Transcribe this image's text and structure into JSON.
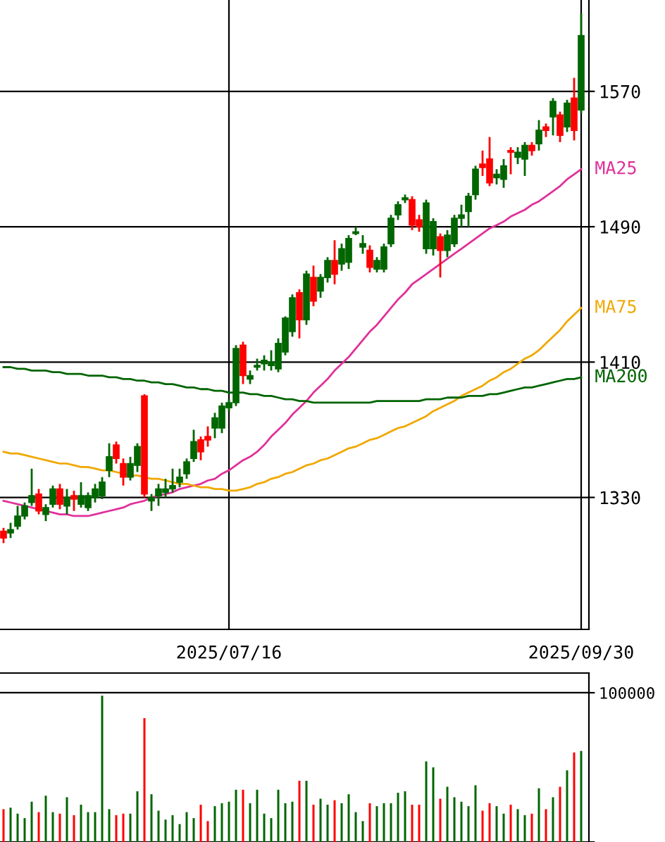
{
  "chart_data": [
    {
      "type": "candlestick",
      "categories": [
        null,
        null,
        null,
        null,
        null,
        null,
        null,
        null,
        null,
        null,
        null,
        null,
        null,
        null,
        null,
        null,
        null,
        null,
        null,
        null,
        null,
        null,
        null,
        null,
        null,
        null,
        null,
        null,
        null,
        null,
        null,
        null,
        "2025/07/16",
        null,
        null,
        null,
        null,
        null,
        null,
        null,
        null,
        null,
        null,
        null,
        null,
        null,
        null,
        null,
        null,
        null,
        null,
        null,
        null,
        null,
        null,
        null,
        null,
        null,
        null,
        null,
        null,
        null,
        null,
        null,
        null,
        null,
        null,
        null,
        null,
        null,
        null,
        null,
        null,
        null,
        null,
        null,
        null,
        null,
        null,
        null,
        null,
        null,
        "2025/09/30"
      ],
      "ohlc": [
        [
          1310,
          1312,
          1303,
          1306
        ],
        [
          1309,
          1315,
          1306,
          1311
        ],
        [
          1313,
          1325,
          1311,
          1319
        ],
        [
          1319,
          1327,
          1317,
          1325
        ],
        [
          1327,
          1347,
          1325,
          1331
        ],
        [
          1332,
          1335,
          1320,
          1322
        ],
        [
          1320,
          1326,
          1316,
          1324
        ],
        [
          1326,
          1337,
          1324,
          1335
        ],
        [
          1335,
          1338,
          1323,
          1326
        ],
        [
          1325,
          1335,
          1320,
          1330
        ],
        [
          1331,
          1334,
          1322,
          1329
        ],
        [
          1326,
          1339,
          1324,
          1331
        ],
        [
          1324,
          1333,
          1322,
          1331
        ],
        [
          1330,
          1338,
          1327,
          1335
        ],
        [
          1331,
          1342,
          1329,
          1339
        ],
        [
          1346,
          1362,
          1342,
          1354
        ],
        [
          1361,
          1363,
          1350,
          1353
        ],
        [
          1350,
          1353,
          1337,
          1342
        ],
        [
          1342,
          1354,
          1340,
          1350
        ],
        [
          1349,
          1362,
          1345,
          1360
        ],
        [
          1390,
          1391,
          1330,
          1332
        ],
        [
          1328,
          1332,
          1322,
          1330
        ],
        [
          1331,
          1338,
          1325,
          1335
        ],
        [
          1333,
          1341,
          1330,
          1335
        ],
        [
          1335,
          1347,
          1333,
          1337
        ],
        [
          1339,
          1347,
          1336,
          1342
        ],
        [
          1344,
          1353,
          1341,
          1351
        ],
        [
          1353,
          1370,
          1351,
          1363
        ],
        [
          1364,
          1366,
          1352,
          1357
        ],
        [
          1366,
          1372,
          1360,
          1364
        ],
        [
          1371,
          1380,
          1365,
          1377
        ],
        [
          1371,
          1386,
          1368,
          1384
        ],
        [
          1383,
          1388,
          1381,
          1386
        ],
        [
          1386,
          1420,
          1384,
          1418
        ],
        [
          1420,
          1422,
          1397,
          1402
        ],
        [
          1400,
          1405,
          1397,
          1402
        ],
        [
          1407,
          1412,
          1405,
          1408
        ],
        [
          1409,
          1414,
          1405,
          1411
        ],
        [
          1408,
          1417,
          1405,
          1410
        ],
        [
          1406,
          1424,
          1404,
          1421
        ],
        [
          1416,
          1437,
          1414,
          1436
        ],
        [
          1428,
          1450,
          1425,
          1448
        ],
        [
          1451,
          1453,
          1424,
          1435
        ],
        [
          1435,
          1464,
          1432,
          1462
        ],
        [
          1460,
          1467,
          1443,
          1446
        ],
        [
          1452,
          1462,
          1448,
          1460
        ],
        [
          1460,
          1472,
          1457,
          1470
        ],
        [
          1470,
          1482,
          1456,
          1462
        ],
        [
          1468,
          1480,
          1464,
          1477
        ],
        [
          1469,
          1485,
          1465,
          1483
        ],
        [
          1486,
          1490,
          1485,
          1487
        ],
        [
          1478,
          1485,
          1474,
          1480
        ],
        [
          1476,
          1479,
          1463,
          1466
        ],
        [
          1465,
          1472,
          1463,
          1470
        ],
        [
          1465,
          1480,
          1463,
          1478
        ],
        [
          1480,
          1497,
          1478,
          1495
        ],
        [
          1497,
          1505,
          1494,
          1503
        ],
        [
          1506,
          1509,
          1504,
          1507
        ],
        [
          1506,
          1508,
          1488,
          1491
        ],
        [
          1494,
          1497,
          1487,
          1490
        ],
        [
          1477,
          1506,
          1474,
          1504
        ],
        [
          1477,
          1495,
          1473,
          1493
        ],
        [
          1484,
          1486,
          1460,
          1476
        ],
        [
          1476,
          1488,
          1472,
          1485
        ],
        [
          1480,
          1497,
          1478,
          1495
        ],
        [
          1495,
          1503,
          1490,
          1497
        ],
        [
          1499,
          1510,
          1490,
          1508
        ],
        [
          1509,
          1526,
          1506,
          1524
        ],
        [
          1527,
          1535,
          1520,
          1525
        ],
        [
          1530,
          1543,
          1514,
          1516
        ],
        [
          1519,
          1524,
          1515,
          1521
        ],
        [
          1518,
          1530,
          1513,
          1526
        ],
        [
          1535,
          1537,
          1521,
          1534
        ],
        [
          1531,
          1537,
          1527,
          1534
        ],
        [
          1530,
          1540,
          1520,
          1538
        ],
        [
          1538,
          1540,
          1532,
          1535
        ],
        [
          1539,
          1553,
          1535,
          1547
        ],
        [
          1549,
          1551,
          1543,
          1547
        ],
        [
          1555,
          1566,
          1544,
          1564
        ],
        [
          1556,
          1558,
          1540,
          1544
        ],
        [
          1549,
          1565,
          1546,
          1563
        ],
        [
          1566,
          1578,
          1541,
          1547
        ],
        [
          1559,
          1616,
          1557,
          1603
        ]
      ],
      "colors": [
        "#ff0000",
        "#006600",
        "#006600",
        "#006600",
        "#006600",
        "#ff0000",
        "#006600",
        "#006600",
        "#ff0000",
        "#006600",
        "#ff0000",
        "#006600",
        "#006600",
        "#006600",
        "#006600",
        "#006600",
        "#ff0000",
        "#ff0000",
        "#006600",
        "#006600",
        "#ff0000",
        "#006600",
        "#006600",
        "#006600",
        "#006600",
        "#006600",
        "#006600",
        "#006600",
        "#ff0000",
        "#ff0000",
        "#006600",
        "#006600",
        "#006600",
        "#006600",
        "#ff0000",
        "#006600",
        "#006600",
        "#006600",
        "#006600",
        "#006600",
        "#006600",
        "#006600",
        "#ff0000",
        "#006600",
        "#ff0000",
        "#006600",
        "#006600",
        "#ff0000",
        "#006600",
        "#006600",
        "#006600",
        "#006600",
        "#ff0000",
        "#006600",
        "#006600",
        "#006600",
        "#006600",
        "#006600",
        "#ff0000",
        "#ff0000",
        "#006600",
        "#006600",
        "#ff0000",
        "#006600",
        "#006600",
        "#006600",
        "#006600",
        "#006600",
        "#ff0000",
        "#ff0000",
        "#006600",
        "#006600",
        "#ff0000",
        "#006600",
        "#006600",
        "#ff0000",
        "#006600",
        "#ff0000",
        "#006600",
        "#ff0000",
        "#006600",
        "#ff0000",
        "#006600"
      ],
      "series": [
        {
          "name": "MA25",
          "type": "line",
          "color": "#e0309a",
          "values": [
            1328,
            1327,
            1326,
            1325,
            1324,
            1323,
            1322,
            1321,
            1320,
            1320,
            1319,
            1319,
            1319,
            1320,
            1321,
            1322,
            1323,
            1324,
            1326,
            1327,
            1328,
            1330,
            1331,
            1332,
            1333,
            1335,
            1336,
            1337,
            1338,
            1340,
            1341,
            1344,
            1346,
            1349,
            1352,
            1354,
            1357,
            1361,
            1366,
            1370,
            1374,
            1379,
            1383,
            1387,
            1392,
            1396,
            1400,
            1405,
            1409,
            1413,
            1418,
            1423,
            1428,
            1432,
            1437,
            1442,
            1447,
            1451,
            1456,
            1459,
            1462,
            1465,
            1468,
            1471,
            1474,
            1477,
            1480,
            1483,
            1486,
            1489,
            1491,
            1493,
            1496,
            1498,
            1500,
            1503,
            1505,
            1508,
            1511,
            1514,
            1518,
            1521,
            1524
          ]
        },
        {
          "name": "MA75",
          "type": "line",
          "color": "#f0a800",
          "values": [
            1357,
            1356,
            1356,
            1355,
            1354,
            1353,
            1352,
            1351,
            1350,
            1350,
            1349,
            1348,
            1348,
            1347,
            1346,
            1346,
            1345,
            1344,
            1343,
            1343,
            1342,
            1341,
            1341,
            1340,
            1339,
            1338,
            1338,
            1337,
            1336,
            1336,
            1335,
            1335,
            1334,
            1334,
            1335,
            1336,
            1338,
            1339,
            1341,
            1342,
            1344,
            1345,
            1347,
            1349,
            1350,
            1352,
            1353,
            1355,
            1357,
            1359,
            1360,
            1362,
            1364,
            1365,
            1367,
            1369,
            1371,
            1372,
            1374,
            1376,
            1378,
            1381,
            1383,
            1385,
            1387,
            1390,
            1392,
            1394,
            1396,
            1399,
            1401,
            1404,
            1406,
            1409,
            1412,
            1414,
            1417,
            1421,
            1425,
            1429,
            1434,
            1438,
            1442
          ]
        },
        {
          "name": "MA200",
          "type": "line",
          "color": "#006400",
          "values": [
            1407,
            1407,
            1406,
            1406,
            1405,
            1405,
            1405,
            1404,
            1404,
            1403,
            1403,
            1403,
            1402,
            1402,
            1402,
            1401,
            1401,
            1400,
            1400,
            1399,
            1399,
            1398,
            1398,
            1397,
            1397,
            1396,
            1395,
            1395,
            1394,
            1394,
            1393,
            1393,
            1392,
            1392,
            1392,
            1391,
            1391,
            1390,
            1390,
            1389,
            1388,
            1388,
            1387,
            1387,
            1386,
            1386,
            1386,
            1386,
            1386,
            1386,
            1386,
            1386,
            1386,
            1387,
            1387,
            1387,
            1387,
            1387,
            1387,
            1387,
            1388,
            1388,
            1388,
            1389,
            1389,
            1389,
            1390,
            1390,
            1390,
            1391,
            1391,
            1392,
            1393,
            1394,
            1395,
            1395,
            1396,
            1397,
            1398,
            1399,
            1400,
            1400,
            1401
          ]
        }
      ],
      "ylim": [
        1252,
        1624
      ],
      "yticks": [
        1330,
        1410,
        1490,
        1570
      ],
      "grid": true
    },
    {
      "type": "bar",
      "categories": [
        null,
        null,
        null,
        null,
        null,
        null,
        null,
        null,
        null,
        null,
        null,
        null,
        null,
        null,
        null,
        null,
        null,
        null,
        null,
        null,
        null,
        null,
        null,
        null,
        null,
        null,
        null,
        null,
        null,
        null,
        null,
        null,
        "2025/07/16",
        null,
        null,
        null,
        null,
        null,
        null,
        null,
        null,
        null,
        null,
        null,
        null,
        null,
        null,
        null,
        null,
        null,
        null,
        null,
        null,
        null,
        null,
        null,
        null,
        null,
        null,
        null,
        null,
        null,
        null,
        null,
        null,
        null,
        null,
        null,
        null,
        null,
        null,
        null,
        null,
        null,
        null,
        null,
        null,
        null,
        null,
        null,
        null,
        null,
        "2025/09/30"
      ],
      "values": [
        22000,
        23000,
        19000,
        16000,
        27000,
        20000,
        31000,
        20000,
        19000,
        30000,
        18000,
        25000,
        20000,
        20000,
        98000,
        22000,
        18000,
        19000,
        19000,
        34000,
        83000,
        32000,
        21000,
        15000,
        18000,
        12000,
        20000,
        16000,
        25000,
        14000,
        24000,
        26000,
        27000,
        35000,
        35000,
        26000,
        35000,
        19000,
        16000,
        35000,
        26000,
        27000,
        41000,
        41000,
        25000,
        29000,
        25000,
        28000,
        26000,
        32000,
        20000,
        14000,
        26000,
        24000,
        26000,
        26000,
        33000,
        34000,
        25000,
        25000,
        54000,
        50000,
        29000,
        37000,
        30000,
        27000,
        24000,
        38000,
        21000,
        26000,
        24000,
        19000,
        25000,
        22000,
        18000,
        19000,
        36000,
        22000,
        30000,
        37000,
        48000,
        60000,
        61000
      ],
      "colors": [
        "#ff0000",
        "#006600",
        "#006600",
        "#006600",
        "#006600",
        "#ff0000",
        "#006600",
        "#006600",
        "#ff0000",
        "#006600",
        "#ff0000",
        "#006600",
        "#006600",
        "#006600",
        "#006600",
        "#006600",
        "#ff0000",
        "#ff0000",
        "#006600",
        "#006600",
        "#ff0000",
        "#006600",
        "#006600",
        "#006600",
        "#006600",
        "#006600",
        "#006600",
        "#006600",
        "#ff0000",
        "#ff0000",
        "#006600",
        "#006600",
        "#006600",
        "#006600",
        "#ff0000",
        "#006600",
        "#006600",
        "#006600",
        "#006600",
        "#006600",
        "#006600",
        "#006600",
        "#ff0000",
        "#006600",
        "#ff0000",
        "#006600",
        "#006600",
        "#ff0000",
        "#006600",
        "#006600",
        "#006600",
        "#006600",
        "#ff0000",
        "#006600",
        "#006600",
        "#006600",
        "#006600",
        "#006600",
        "#ff0000",
        "#ff0000",
        "#006600",
        "#006600",
        "#ff0000",
        "#006600",
        "#006600",
        "#006600",
        "#006600",
        "#006600",
        "#ff0000",
        "#ff0000",
        "#006600",
        "#006600",
        "#ff0000",
        "#006600",
        "#006600",
        "#ff0000",
        "#006600",
        "#ff0000",
        "#006600",
        "#ff0000",
        "#006600",
        "#ff0000",
        "#006600"
      ],
      "ylim": [
        0,
        113200
      ],
      "yticks": [
        {
          "value": 0,
          "label": null
        },
        100000
      ],
      "grid": "y",
      "tick_labels": "y"
    }
  ]
}
